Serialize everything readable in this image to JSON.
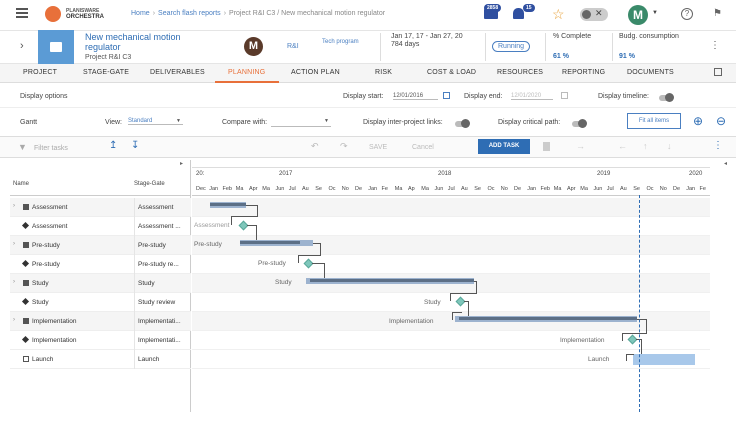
{
  "topbar": {
    "logo_line1": "PLANISWARE",
    "logo_line2": "ORCHESTRA",
    "breadcrumb": [
      "Home",
      "Search flash reports",
      "Project R&I C3 / New mechanical motion regulator"
    ],
    "badge_mail": "2858",
    "badge_bell": "15",
    "avatar_letter": "M",
    "icons": [
      "hamburger-icon",
      "envelope-icon",
      "bell-icon",
      "star-icon",
      "toggle-icon",
      "user-avatar",
      "help-icon",
      "flag-icon"
    ]
  },
  "project": {
    "title": "New mechanical motion regulator",
    "subtitle": "Project R&I C3",
    "owner_letter": "M",
    "division": "R&I",
    "program": "Tech program",
    "dates": "Jan 17, 17 - Jan 27, 20",
    "duration": "784 days",
    "status": "Running",
    "complete_label": "% Complete",
    "complete_value": "61 %",
    "budget_label": "Budg. consumption",
    "budget_value": "91 %"
  },
  "tabs": [
    "PROJECT",
    "STAGE-GATE",
    "DELIVERABLES",
    "PLANNING",
    "ACTION PLAN",
    "RISK",
    "COST & LOAD",
    "RESOURCES",
    "REPORTING",
    "DOCUMENTS"
  ],
  "active_tab": "PLANNING",
  "options": {
    "display_options": "Display options",
    "display_start_label": "Display start:",
    "display_start_value": "12/01/2016",
    "display_end_label": "Display end:",
    "display_end_value": "12/01/2020",
    "display_timeline": "Display timeline:",
    "gantt_label": "Gantt",
    "view_label": "View:",
    "view_value": "Standard",
    "compare_label": "Compare with:",
    "inter_project": "Display inter-project links:",
    "critical_path": "Display critical path:",
    "fit_all": "Fit all items"
  },
  "toolbar": {
    "filter_placeholder": "Filter tasks",
    "save": "SAVE",
    "cancel": "Cancel",
    "add_task": "ADD TASK"
  },
  "columns": {
    "name": "Name",
    "stage": "Stage-Gate"
  },
  "tasks": [
    {
      "name": "Assessment",
      "stage": "Assessment",
      "kind": "phase"
    },
    {
      "name": "Assessment",
      "stage": "Assessment ...",
      "kind": "milestone"
    },
    {
      "name": "Pre-study",
      "stage": "Pre-study",
      "kind": "phase"
    },
    {
      "name": "Pre-study",
      "stage": "Pre-study re...",
      "kind": "milestone"
    },
    {
      "name": "Study",
      "stage": "Study",
      "kind": "phase"
    },
    {
      "name": "Study",
      "stage": "Study review",
      "kind": "milestone"
    },
    {
      "name": "Implementation",
      "stage": "Implementati...",
      "kind": "phase"
    },
    {
      "name": "Implementation",
      "stage": "Implementati...",
      "kind": "milestone"
    },
    {
      "name": "Launch",
      "stage": "Launch",
      "kind": "task"
    }
  ],
  "gantt": {
    "years": [
      "20:",
      "2017",
      "2018",
      "2019",
      "2020"
    ],
    "months": [
      "Dec",
      "Jan",
      "Feb",
      "Ma",
      "Apr",
      "Ma",
      "Jun",
      "Jul",
      "Au",
      "Se",
      "Oc",
      "No",
      "De",
      "Jan",
      "Fe",
      "Ma",
      "Ap",
      "Ma",
      "Jun",
      "Jul",
      "Au",
      "Se",
      "Oc",
      "No",
      "De",
      "Jan",
      "Feb",
      "Ma",
      "Apr",
      "Ma",
      "Jun",
      "Jul",
      "Au",
      "Se",
      "Oc",
      "No",
      "De",
      "Jan",
      "Fe"
    ],
    "bar_labels": [
      "Assessment",
      "Pre-study",
      "Pre-study",
      "Study",
      "Study",
      "Implementation",
      "Implementation",
      "Launch"
    ]
  }
}
